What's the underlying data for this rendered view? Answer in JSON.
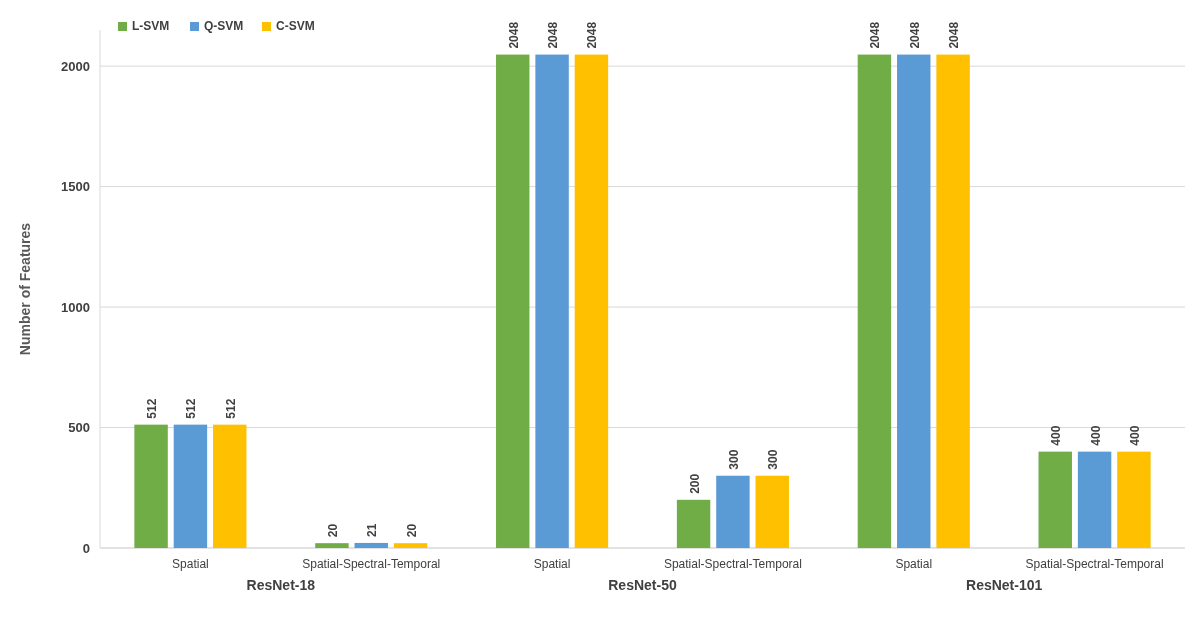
{
  "chart_data": {
    "type": "bar",
    "ylabel": "Number of Features",
    "categories": [
      "Spatial",
      "Spatial-Spectral-Temporal",
      "Spatial",
      "Spatial-Spectral-Temporal",
      "Spatial",
      "Spatial-Spectral-Temporal"
    ],
    "series": [
      {
        "name": "L-SVM",
        "color": "#70ad47",
        "values": [
          512,
          20,
          2048,
          200,
          2048,
          400
        ]
      },
      {
        "name": "Q-SVM",
        "color": "#5b9bd5",
        "values": [
          512,
          21,
          2048,
          300,
          2048,
          400
        ]
      },
      {
        "name": "C-SVM",
        "color": "#ffc000",
        "values": [
          512,
          20,
          2048,
          300,
          2048,
          400
        ]
      }
    ],
    "annotations": [
      "ResNet-18",
      "ResNet-50",
      "ResNet-101"
    ],
    "ylim": [
      0,
      2150
    ],
    "yticks": [
      0,
      500,
      1000,
      1500,
      2000
    ],
    "grid": "y",
    "legend": "top left",
    "data_labels": true
  }
}
